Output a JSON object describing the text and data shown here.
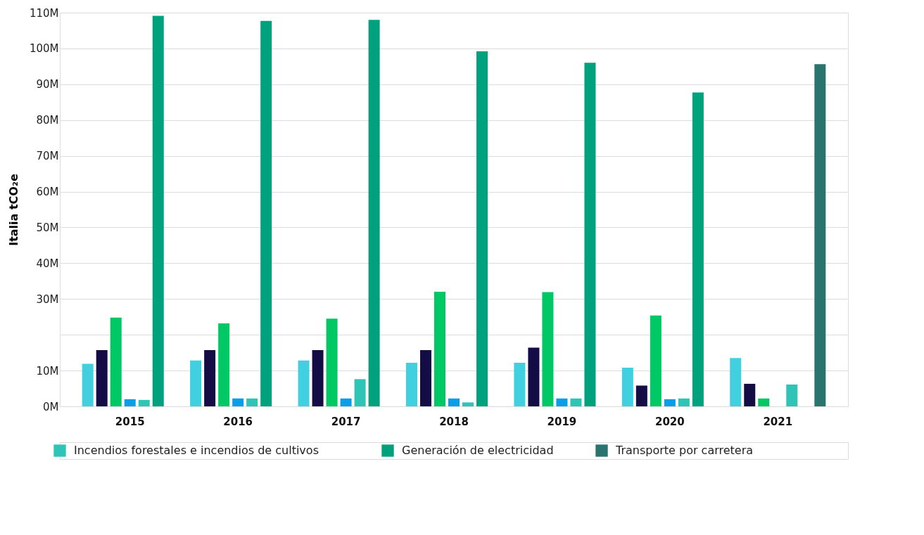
{
  "chart_data": {
    "type": "bar",
    "ylabel": "Italia tCO₂e",
    "categories": [
      "2015",
      "2016",
      "2017",
      "2018",
      "2019",
      "2020",
      "2021"
    ],
    "series": [
      {
        "color": "#40d0e0",
        "values": [
          11.9,
          12.8,
          12.8,
          12.2,
          12.2,
          10.8,
          13.5
        ]
      },
      {
        "color": "#140c44",
        "values": [
          15.7,
          15.7,
          15.7,
          15.7,
          16.4,
          5.8,
          6.3
        ]
      },
      {
        "color": "#00c864",
        "values": [
          24.8,
          23.2,
          24.5,
          32.0,
          31.9,
          25.4,
          2.2
        ]
      },
      {
        "color": "#0a9ee8",
        "values": [
          2.0,
          2.2,
          2.2,
          2.2,
          2.2,
          2.0,
          null
        ]
      },
      {
        "name": "Incendios forestales e incendios de cultivos",
        "color": "#2ec4b6",
        "values": [
          1.8,
          2.2,
          7.6,
          1.1,
          2.2,
          2.2,
          6.1
        ]
      },
      {
        "name": "Generación de electricidad",
        "color": "#00a27e",
        "values": [
          109.1,
          107.7,
          108.0,
          99.2,
          96.0,
          87.7,
          null
        ]
      },
      {
        "name": "Transporte por carretera",
        "color": "#2a7470",
        "values": [
          null,
          null,
          null,
          null,
          null,
          null,
          95.6
        ]
      }
    ],
    "ylim": [
      0,
      110
    ],
    "yticks": [
      {
        "value": 0,
        "label": "0M"
      },
      {
        "value": 10,
        "label": "10M"
      },
      {
        "value": 20,
        "label": null
      },
      {
        "value": 30,
        "label": "30M"
      },
      {
        "value": 40,
        "label": "40M"
      },
      {
        "value": 50,
        "label": "50M"
      },
      {
        "value": 60,
        "label": "60M"
      },
      {
        "value": 70,
        "label": "70M"
      },
      {
        "value": 80,
        "label": "80M"
      },
      {
        "value": 90,
        "label": "90M"
      },
      {
        "value": 100,
        "label": "100M"
      },
      {
        "value": 110,
        "label": "110M"
      }
    ],
    "grid": "y",
    "legend": "bottom"
  }
}
